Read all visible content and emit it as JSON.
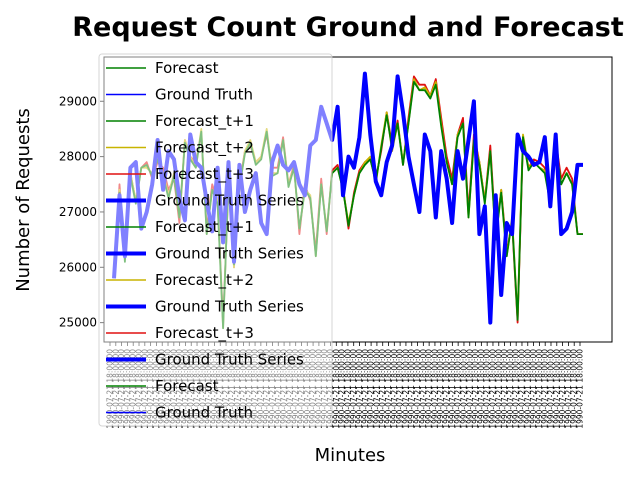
{
  "chart_data": {
    "type": "line",
    "title": "Request Count Ground and Forecast",
    "xlabel": "Minutes",
    "ylabel": "Number of Requests",
    "ylim": [
      24650,
      29800
    ],
    "yticks": [
      25000,
      26000,
      27000,
      28000,
      29000
    ],
    "x_tick_label": "1990-07-21 18:00:00",
    "x_tick_count": 82,
    "grid": false,
    "legend": {
      "placement": "upper-left",
      "entries": [
        {
          "name": "Forecast",
          "color": "#008000",
          "width": 1.5
        },
        {
          "name": "Ground Truth",
          "color": "#0000ff",
          "width": 1.5
        },
        {
          "name": "Forecast_t+1",
          "color": "#008000",
          "width": 1.5
        },
        {
          "name": "Forecast_t+2",
          "color": "#c8b400",
          "width": 1.5
        },
        {
          "name": "Forecast_t+3",
          "color": "#e01010",
          "width": 1.5
        },
        {
          "name": "Ground Truth Series",
          "color": "#0000ff",
          "width": 4
        },
        {
          "name": "Forecast_t+1",
          "color": "#008000",
          "width": 1.5
        },
        {
          "name": "Ground Truth Series",
          "color": "#0000ff",
          "width": 4
        },
        {
          "name": "Forecast_t+2",
          "color": "#c8b400",
          "width": 1.5
        },
        {
          "name": "Ground Truth Series",
          "color": "#0000ff",
          "width": 4
        },
        {
          "name": "Forecast_t+3",
          "color": "#e01010",
          "width": 1.5
        },
        {
          "name": "Ground Truth Series",
          "color": "#0000ff",
          "width": 4
        },
        {
          "name": "Forecast",
          "color": "#008000",
          "width": 1.5
        },
        {
          "name": "Ground Truth",
          "color": "#0000ff",
          "width": 1.5
        }
      ]
    },
    "series": [
      {
        "name": "Forecast_t+3",
        "color": "#e01010",
        "width": 1.8,
        "values": [
          25800,
          27500,
          26200,
          27700,
          27200,
          27800,
          27900,
          27600,
          27900,
          27800,
          27400,
          27600,
          26800,
          28300,
          28000,
          27900,
          28400,
          26700,
          27500,
          27200,
          25000,
          27500,
          26000,
          27500,
          28100,
          28200,
          27900,
          28000,
          28400,
          27800,
          27800,
          28350,
          27500,
          27850,
          26600,
          27500,
          27200,
          26300,
          27600,
          26600,
          27750,
          27850,
          27450,
          26700,
          27350,
          27750,
          27900,
          27950,
          27600,
          28100,
          28800,
          28200,
          28650,
          27850,
          28700,
          29450,
          29300,
          29300,
          29100,
          29400,
          28700,
          28000,
          27600,
          28400,
          28700,
          27000,
          28400,
          27900,
          27200,
          28200,
          26600,
          27400,
          26300,
          26800,
          25000,
          28300,
          27800,
          27950,
          27900,
          27800,
          27200,
          28300,
          27600,
          27800,
          27600,
          26600,
          26600
        ]
      },
      {
        "name": "Forecast_t+2",
        "color": "#c8b400",
        "width": 1.8,
        "values": [
          25800,
          27400,
          26200,
          27700,
          27200,
          27800,
          27800,
          27700,
          28000,
          27700,
          27300,
          27700,
          26900,
          28300,
          28000,
          27800,
          28500,
          26600,
          27400,
          27200,
          24900,
          27600,
          26000,
          27400,
          28100,
          28300,
          27900,
          28000,
          28500,
          27700,
          27700,
          28300,
          27500,
          27800,
          26700,
          27400,
          27300,
          26200,
          27500,
          26700,
          27700,
          27800,
          27400,
          26800,
          27300,
          27700,
          27900,
          28000,
          27500,
          28200,
          28800,
          28100,
          28600,
          27900,
          28600,
          29400,
          29200,
          29250,
          29100,
          29350,
          28600,
          27900,
          27500,
          28400,
          28600,
          26900,
          28300,
          27900,
          27200,
          28100,
          26500,
          27400,
          26200,
          26900,
          25100,
          28400,
          27800,
          27900,
          27800,
          27750,
          27200,
          28200,
          27500,
          27700,
          27500,
          26600,
          26600
        ]
      },
      {
        "name": "Forecast_t+1",
        "color": "#008000",
        "width": 1.8,
        "values": [
          25850,
          27350,
          26100,
          27650,
          27150,
          27800,
          27850,
          27650,
          27950,
          27650,
          27250,
          27650,
          26900,
          28250,
          27950,
          27800,
          28450,
          26600,
          27400,
          27150,
          24900,
          27550,
          26050,
          27450,
          28050,
          28250,
          27850,
          27950,
          28450,
          27650,
          27700,
          28300,
          27450,
          27800,
          26700,
          27400,
          27250,
          26200,
          27500,
          26650,
          27700,
          27800,
          27400,
          26750,
          27300,
          27700,
          27850,
          27950,
          27550,
          28150,
          28750,
          28150,
          28600,
          27850,
          28600,
          29350,
          29200,
          29200,
          29050,
          29300,
          28550,
          27900,
          27500,
          28350,
          28600,
          26900,
          28300,
          27850,
          27150,
          28100,
          26500,
          27350,
          26200,
          26850,
          25050,
          28350,
          27750,
          27900,
          27800,
          27700,
          27150,
          28200,
          27500,
          27700,
          27500,
          26600,
          26600
        ]
      },
      {
        "name": "Ground Truth Series",
        "color": "#0000ff",
        "width": 4,
        "values": [
          25800,
          27300,
          26200,
          27800,
          27900,
          26700,
          27000,
          27500,
          28300,
          27400,
          28100,
          27950,
          27250,
          26850,
          28400,
          27900,
          27800,
          27200,
          26650,
          27800,
          26450,
          27900,
          26100,
          27850,
          27000,
          27400,
          27700,
          26800,
          26600,
          27900,
          28200,
          27850,
          27750,
          27900,
          27500,
          27300,
          28200,
          28300,
          28900,
          28600,
          28300,
          28900,
          27300,
          28000,
          27800,
          28350,
          29500,
          28400,
          27550,
          27300,
          27900,
          28200,
          29450,
          28800,
          28000,
          27500,
          27000,
          28400,
          28100,
          26900,
          28100,
          27600,
          26800,
          28100,
          27600,
          28300,
          29000,
          26600,
          27100,
          25000,
          27300,
          25500,
          26800,
          26600,
          28400,
          28100,
          28000,
          27850,
          27900,
          28350,
          27100,
          28400,
          26600,
          26700,
          27000,
          27850,
          27850
        ]
      }
    ]
  }
}
